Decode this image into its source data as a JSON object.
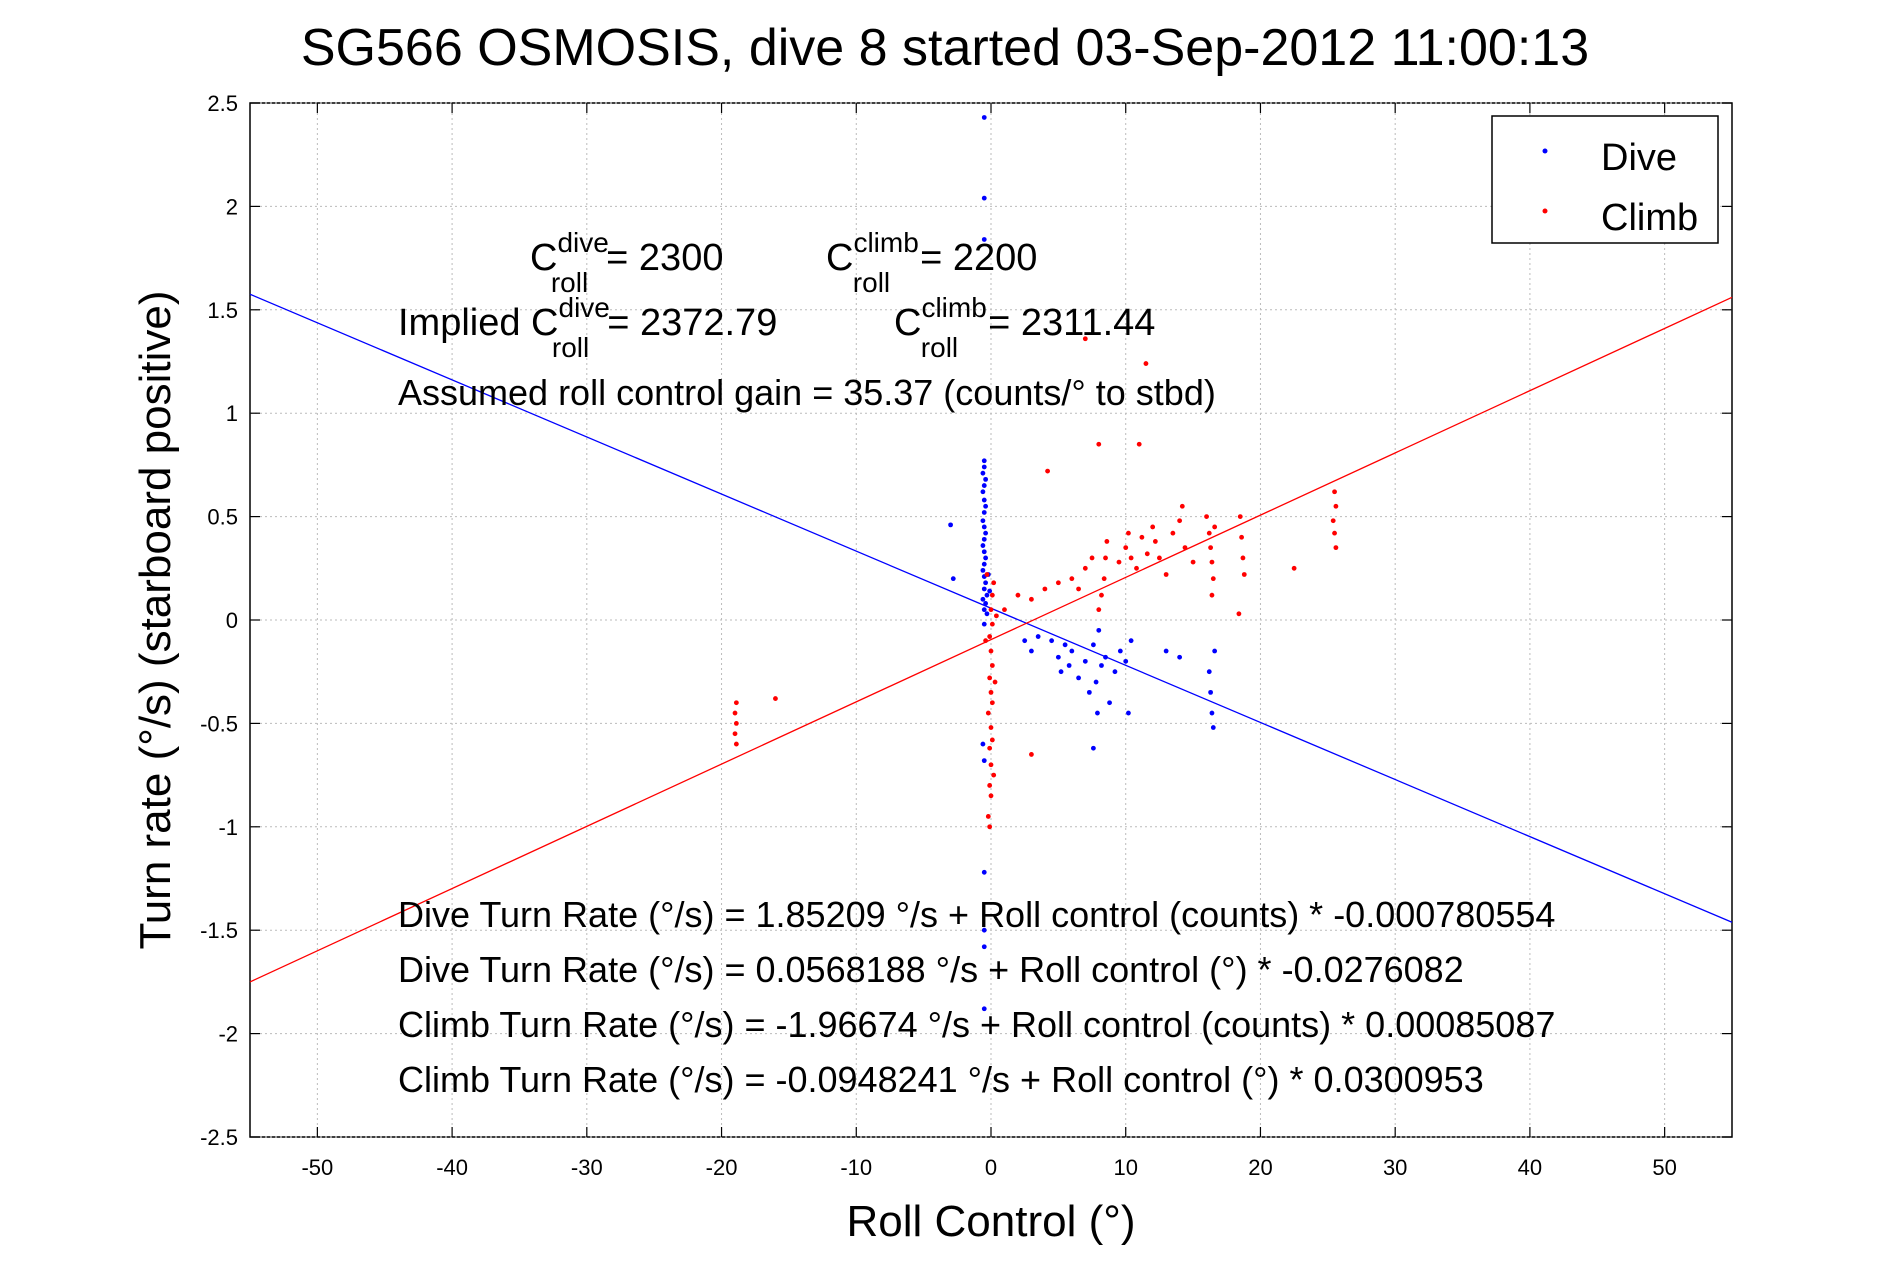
{
  "chart_data": {
    "type": "scatter",
    "title": "SG566 OSMOSIS, dive 8 started 03-Sep-2012 11:00:13",
    "xlabel": "Roll Control (°)",
    "ylabel": "Turn rate (°/s) (starboard positive)",
    "xlim": [
      -55,
      55
    ],
    "ylim": [
      -2.5,
      2.5
    ],
    "xticks": [
      -50,
      -40,
      -30,
      -20,
      -10,
      0,
      10,
      20,
      30,
      40,
      50
    ],
    "yticks": [
      -2.5,
      -2,
      -1.5,
      -1,
      -0.5,
      0,
      0.5,
      1,
      1.5,
      2,
      2.5
    ],
    "grid": true,
    "legend_position": "top-right",
    "series": [
      {
        "name": "Dive",
        "color": "#0000ff",
        "fit": {
          "intercept": 0.0568188,
          "slope": -0.0276082
        },
        "points": [
          [
            -0.5,
            2.43
          ],
          [
            -0.5,
            2.04
          ],
          [
            -0.5,
            1.84
          ],
          [
            -0.5,
            0.77
          ],
          [
            -0.5,
            0.74
          ],
          [
            -0.6,
            0.71
          ],
          [
            -0.4,
            0.68
          ],
          [
            -0.5,
            0.65
          ],
          [
            -0.6,
            0.62
          ],
          [
            -0.5,
            0.58
          ],
          [
            -0.4,
            0.55
          ],
          [
            -0.5,
            0.52
          ],
          [
            -0.6,
            0.48
          ],
          [
            -0.5,
            0.45
          ],
          [
            -0.4,
            0.42
          ],
          [
            -0.5,
            0.39
          ],
          [
            -0.6,
            0.36
          ],
          [
            -0.5,
            0.33
          ],
          [
            -0.4,
            0.3
          ],
          [
            -0.5,
            0.27
          ],
          [
            -0.6,
            0.24
          ],
          [
            -0.5,
            0.21
          ],
          [
            -0.4,
            0.18
          ],
          [
            -0.5,
            0.15
          ],
          [
            -0.3,
            0.12
          ],
          [
            -0.6,
            0.1
          ],
          [
            -0.4,
            0.08
          ],
          [
            -0.5,
            0.05
          ],
          [
            -0.2,
            0.22
          ],
          [
            -0.1,
            0.14
          ],
          [
            -0.3,
            0.03
          ],
          [
            -0.5,
            -0.02
          ],
          [
            -0.6,
            -0.6
          ],
          [
            -0.5,
            -0.68
          ],
          [
            -0.5,
            -1.22
          ],
          [
            -0.5,
            -1.5
          ],
          [
            -0.5,
            -1.58
          ],
          [
            -0.5,
            -1.88
          ],
          [
            -3.0,
            0.46
          ],
          [
            -2.8,
            0.2
          ],
          [
            2.5,
            -0.1
          ],
          [
            3.0,
            -0.15
          ],
          [
            3.5,
            -0.08
          ],
          [
            4.5,
            -0.1
          ],
          [
            5.0,
            -0.18
          ],
          [
            5.2,
            -0.25
          ],
          [
            5.5,
            -0.12
          ],
          [
            5.8,
            -0.22
          ],
          [
            6.0,
            -0.15
          ],
          [
            6.5,
            -0.28
          ],
          [
            7.0,
            -0.2
          ],
          [
            7.3,
            -0.35
          ],
          [
            7.6,
            -0.12
          ],
          [
            7.8,
            -0.3
          ],
          [
            8.0,
            -0.05
          ],
          [
            8.2,
            -0.22
          ],
          [
            8.5,
            -0.18
          ],
          [
            8.8,
            -0.4
          ],
          [
            9.2,
            -0.25
          ],
          [
            9.6,
            -0.15
          ],
          [
            10.0,
            -0.2
          ],
          [
            10.2,
            -0.45
          ],
          [
            10.4,
            -0.1
          ],
          [
            7.6,
            -0.62
          ],
          [
            7.9,
            -0.45
          ],
          [
            13.0,
            -0.15
          ],
          [
            14.0,
            -0.18
          ],
          [
            16.2,
            -0.25
          ],
          [
            16.3,
            -0.35
          ],
          [
            16.4,
            -0.45
          ],
          [
            16.5,
            -0.52
          ],
          [
            16.6,
            -0.15
          ]
        ]
      },
      {
        "name": "Climb",
        "color": "#ff0000",
        "fit": {
          "intercept": -0.0948241,
          "slope": 0.0300953
        },
        "points": [
          [
            0.0,
            0.05
          ],
          [
            0.1,
            -0.02
          ],
          [
            -0.1,
            -0.08
          ],
          [
            0.0,
            -0.15
          ],
          [
            0.1,
            -0.22
          ],
          [
            -0.1,
            -0.28
          ],
          [
            0.0,
            -0.35
          ],
          [
            0.1,
            -0.4
          ],
          [
            -0.2,
            -0.45
          ],
          [
            0.0,
            -0.52
          ],
          [
            0.1,
            -0.58
          ],
          [
            -0.1,
            -0.62
          ],
          [
            0.0,
            -0.7
          ],
          [
            0.2,
            -0.75
          ],
          [
            -0.1,
            -0.8
          ],
          [
            0.0,
            -0.85
          ],
          [
            -0.2,
            -0.95
          ],
          [
            -0.1,
            -1.0
          ],
          [
            0.1,
            0.12
          ],
          [
            0.2,
            0.18
          ],
          [
            -0.3,
            0.22
          ],
          [
            0.3,
            -0.3
          ],
          [
            0.4,
            0.02
          ],
          [
            -0.4,
            -0.1
          ],
          [
            1.0,
            0.05
          ],
          [
            2.0,
            0.12
          ],
          [
            3.0,
            0.1
          ],
          [
            4.0,
            0.15
          ],
          [
            3.0,
            -0.65
          ],
          [
            4.2,
            0.72
          ],
          [
            5.0,
            0.18
          ],
          [
            6.0,
            0.2
          ],
          [
            6.5,
            0.15
          ],
          [
            7.0,
            0.25
          ],
          [
            7.5,
            0.3
          ],
          [
            8.0,
            0.05
          ],
          [
            8.2,
            0.12
          ],
          [
            8.4,
            0.2
          ],
          [
            8.5,
            0.3
          ],
          [
            8.6,
            0.38
          ],
          [
            8.0,
            0.85
          ],
          [
            9.5,
            0.28
          ],
          [
            10.0,
            0.35
          ],
          [
            10.2,
            0.42
          ],
          [
            10.4,
            0.3
          ],
          [
            10.8,
            0.25
          ],
          [
            11.0,
            0.85
          ],
          [
            11.5,
            1.24
          ],
          [
            11.2,
            0.4
          ],
          [
            11.6,
            0.32
          ],
          [
            12.0,
            0.45
          ],
          [
            12.2,
            0.38
          ],
          [
            12.5,
            0.3
          ],
          [
            13.0,
            0.22
          ],
          [
            13.5,
            0.42
          ],
          [
            14.0,
            0.48
          ],
          [
            14.2,
            0.55
          ],
          [
            14.4,
            0.35
          ],
          [
            15.0,
            0.28
          ],
          [
            16.0,
            0.5
          ],
          [
            16.2,
            0.42
          ],
          [
            16.3,
            0.35
          ],
          [
            16.4,
            0.28
          ],
          [
            16.5,
            0.2
          ],
          [
            16.6,
            0.45
          ],
          [
            16.4,
            0.12
          ],
          [
            18.5,
            0.5
          ],
          [
            18.6,
            0.4
          ],
          [
            18.7,
            0.3
          ],
          [
            18.8,
            0.22
          ],
          [
            18.4,
            0.03
          ],
          [
            22.5,
            0.25
          ],
          [
            25.5,
            0.62
          ],
          [
            25.6,
            0.55
          ],
          [
            25.4,
            0.48
          ],
          [
            25.5,
            0.42
          ],
          [
            25.6,
            0.35
          ],
          [
            7.0,
            1.36
          ],
          [
            -18.9,
            -0.4
          ],
          [
            -19.0,
            -0.45
          ],
          [
            -18.9,
            -0.5
          ],
          [
            -19.0,
            -0.55
          ],
          [
            -18.9,
            -0.6
          ],
          [
            -16.0,
            -0.38
          ]
        ]
      }
    ],
    "annotations": {
      "c_roll_dive_label": "C",
      "c_roll_dive_sup": "dive",
      "c_roll_dive_sub": "roll",
      "c_roll_dive_value": "= 2300",
      "c_roll_climb_label": "C",
      "c_roll_climb_sup": "climb",
      "c_roll_climb_sub": "roll",
      "c_roll_climb_value": "= 2200",
      "implied_prefix": "Implied C",
      "implied_dive_sup": "dive",
      "implied_dive_sub": "roll",
      "implied_dive_value": "= 2372.79",
      "implied_climb_label": "C",
      "implied_climb_sup": "climb",
      "implied_climb_sub": "roll",
      "implied_climb_value": "= 2311.44",
      "gain": "Assumed roll control gain = 35.37 (counts/° to stbd)",
      "fit_lines": [
        "Dive Turn Rate (°/s) = 1.85209 °/s + Roll control (counts) * -0.000780554",
        "Dive Turn Rate (°/s) = 0.0568188 °/s + Roll control (°) * -0.0276082",
        "Climb Turn Rate (°/s) = -1.96674 °/s + Roll control (counts) * 0.00085087",
        "Climb Turn Rate (°/s) = -0.0948241 °/s + Roll control (°) * 0.0300953"
      ]
    }
  }
}
